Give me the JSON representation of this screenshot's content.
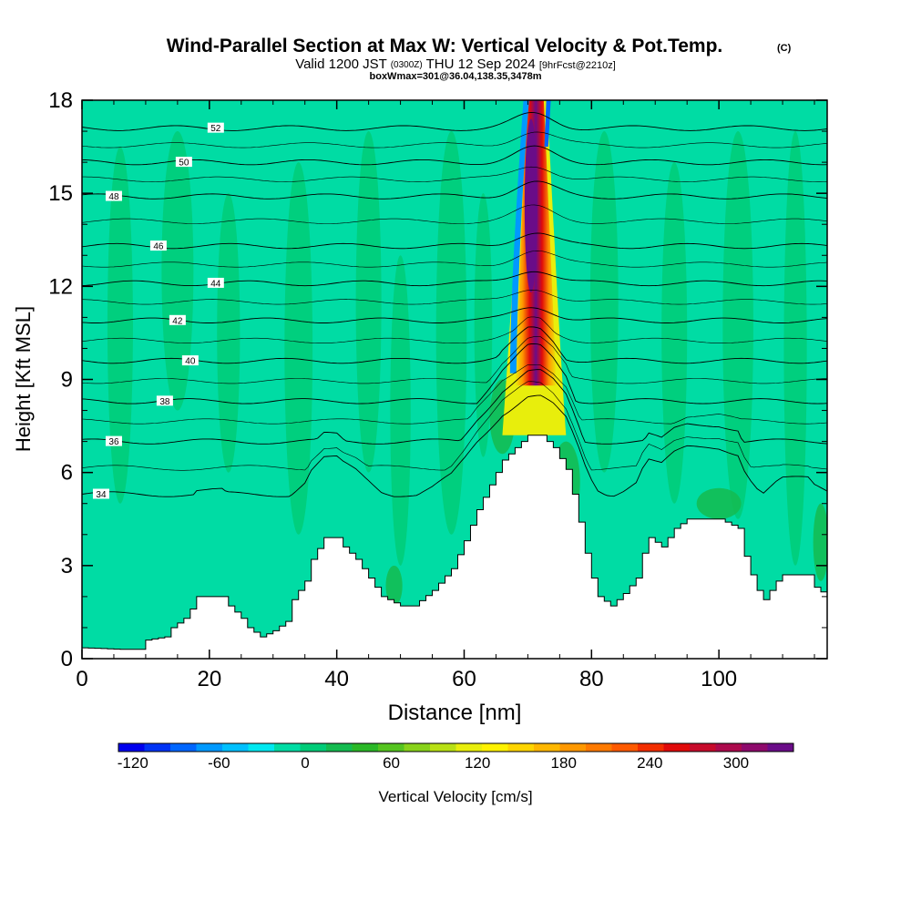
{
  "header": {
    "title": "Wind-Parallel Section at Max W: Vertical Velocity & Pot.Temp.",
    "copyright": "(C)",
    "valid_prefix": "Valid 1200 JST",
    "valid_utc": "(0300Z)",
    "valid_date": "THU 12 Sep 2024",
    "forecast": "[9hrFcst@2210z]",
    "box_info": "boxWmax=301@36.04,138.35,3478m"
  },
  "chart_data": {
    "type": "contour",
    "xlabel": "Distance [nm]",
    "ylabel": "Height [Kft MSL]",
    "xlim": [
      0,
      117
    ],
    "ylim": [
      0,
      18
    ],
    "x_ticks": [
      "0",
      "20",
      "40",
      "60",
      "80",
      "100"
    ],
    "y_ticks": [
      "0",
      "3",
      "6",
      "9",
      "12",
      "15",
      "18"
    ],
    "terrain_kft": [
      [
        0,
        0.35
      ],
      [
        6,
        0.3
      ],
      [
        9,
        0.3
      ],
      [
        10,
        0.6
      ],
      [
        13,
        0.7
      ],
      [
        14,
        1.0
      ],
      [
        16,
        1.3
      ],
      [
        17,
        1.6
      ],
      [
        18,
        2.0
      ],
      [
        22,
        2.0
      ],
      [
        23,
        1.7
      ],
      [
        25,
        1.3
      ],
      [
        26,
        1.0
      ],
      [
        28,
        0.7
      ],
      [
        30,
        0.9
      ],
      [
        32,
        1.2
      ],
      [
        33,
        1.9
      ],
      [
        35,
        2.5
      ],
      [
        36,
        3.2
      ],
      [
        38,
        3.9
      ],
      [
        40,
        3.9
      ],
      [
        41,
        3.6
      ],
      [
        43,
        3.2
      ],
      [
        45,
        2.6
      ],
      [
        47,
        2.0
      ],
      [
        50,
        1.7
      ],
      [
        52,
        1.7
      ],
      [
        55,
        2.2
      ],
      [
        58,
        2.9
      ],
      [
        60,
        3.8
      ],
      [
        62,
        4.8
      ],
      [
        64,
        5.6
      ],
      [
        66,
        6.4
      ],
      [
        68,
        6.8
      ],
      [
        70,
        7.2
      ],
      [
        72,
        7.2
      ],
      [
        74,
        6.8
      ],
      [
        76,
        6.1
      ],
      [
        77,
        5.3
      ],
      [
        78,
        4.4
      ],
      [
        79,
        3.4
      ],
      [
        80,
        2.6
      ],
      [
        81,
        2.0
      ],
      [
        83,
        1.7
      ],
      [
        85,
        2.1
      ],
      [
        87,
        2.6
      ],
      [
        88,
        3.4
      ],
      [
        89,
        3.9
      ],
      [
        91,
        3.6
      ],
      [
        93,
        4.2
      ],
      [
        95,
        4.5
      ],
      [
        100,
        4.5
      ],
      [
        103,
        4.2
      ],
      [
        104,
        3.3
      ],
      [
        105,
        2.7
      ],
      [
        106,
        2.2
      ],
      [
        107,
        1.9
      ],
      [
        109,
        2.5
      ],
      [
        110,
        2.7
      ],
      [
        114,
        2.7
      ],
      [
        115,
        2.3
      ],
      [
        117,
        2.0
      ]
    ],
    "theta_contours": [
      {
        "label": "34",
        "base": 5.3,
        "label_x": 3
      },
      {
        "label": "36",
        "base": 7.0,
        "label_x": 5
      },
      {
        "label": "38",
        "base": 8.3,
        "label_x": 13
      },
      {
        "label": "40",
        "base": 9.6,
        "label_x": 17
      },
      {
        "label": "42",
        "base": 10.9,
        "label_x": 15
      },
      {
        "label": "44",
        "base": 12.1,
        "label_x": 21
      },
      {
        "label": "46",
        "base": 13.3,
        "label_x": 12
      },
      {
        "label": "48",
        "base": 14.9,
        "label_x": 5
      },
      {
        "label": "50",
        "base": 16.0,
        "label_x": 16
      },
      {
        "label": "52",
        "base": 17.1,
        "label_x": 21
      }
    ],
    "updraft": {
      "center_nm": 70.5,
      "w_max_cms": 301,
      "base_kft": 7,
      "top_kft": 18
    },
    "colorbar": {
      "label": "Vertical Velocity [cm/s]",
      "tick_labels": [
        "-120",
        "-60",
        "0",
        "60",
        "120",
        "180",
        "240",
        "300"
      ],
      "tick_values": [
        -120,
        -60,
        0,
        60,
        120,
        180,
        240,
        300
      ],
      "min": -130,
      "max": 340,
      "step": 20,
      "colors": [
        "#0000ee",
        "#0033f5",
        "#0066ff",
        "#0099ff",
        "#00c0ff",
        "#00e8f0",
        "#00dca4",
        "#00cc78",
        "#14bb50",
        "#2ab827",
        "#55c420",
        "#88d21a",
        "#b8e015",
        "#e8ee0c",
        "#fff200",
        "#ffd500",
        "#ffb700",
        "#ff9800",
        "#ff7a00",
        "#ff5a00",
        "#f22e00",
        "#e00a0a",
        "#c70b2b",
        "#ac0a4d",
        "#8e0a6c",
        "#6a0c88"
      ]
    }
  }
}
